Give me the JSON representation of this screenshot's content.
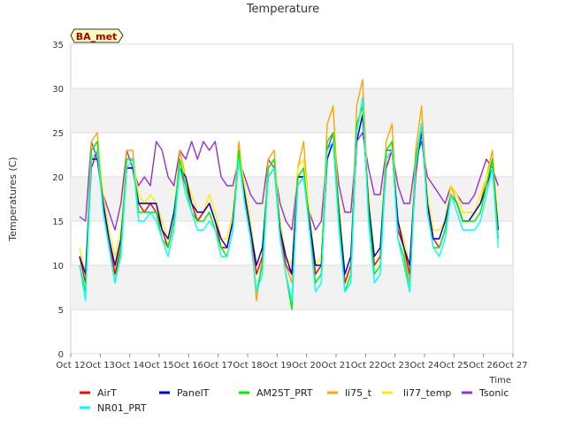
{
  "chart_data": {
    "type": "line",
    "title": "Temperature",
    "xlabel": "Time",
    "ylabel": "Temperatures (C)",
    "annotation": "BA_met",
    "ylim": [
      0,
      35
    ],
    "xlim": [
      0,
      15
    ],
    "yticks": [
      0,
      5,
      10,
      15,
      20,
      25,
      30,
      35
    ],
    "xticks": [
      {
        "pos": 0,
        "label": "Oct 12"
      },
      {
        "pos": 1,
        "label": "Oct 13"
      },
      {
        "pos": 2,
        "label": "Oct 14"
      },
      {
        "pos": 3,
        "label": "Oct 15"
      },
      {
        "pos": 4,
        "label": "Oct 16"
      },
      {
        "pos": 5,
        "label": "Oct 17"
      },
      {
        "pos": 6,
        "label": "Oct 18"
      },
      {
        "pos": 7,
        "label": "Oct 19"
      },
      {
        "pos": 8,
        "label": "Oct 20"
      },
      {
        "pos": 9,
        "label": "Oct 21"
      },
      {
        "pos": 10,
        "label": "Oct 22"
      },
      {
        "pos": 11,
        "label": "Oct 23"
      },
      {
        "pos": 12,
        "label": "Oct 24"
      },
      {
        "pos": 13,
        "label": "Oct 25"
      },
      {
        "pos": 14,
        "label": "Oct 26"
      },
      {
        "pos": 15,
        "label": "Oct 27"
      }
    ],
    "grid": true,
    "legend_position": "bottom",
    "x": [
      0.3,
      0.5,
      0.7,
      0.9,
      1.1,
      1.3,
      1.5,
      1.7,
      1.9,
      2.1,
      2.3,
      2.5,
      2.7,
      2.9,
      3.1,
      3.3,
      3.5,
      3.7,
      3.9,
      4.1,
      4.3,
      4.5,
      4.7,
      4.9,
      5.1,
      5.3,
      5.5,
      5.7,
      5.9,
      6.1,
      6.3,
      6.5,
      6.7,
      6.9,
      7.1,
      7.3,
      7.5,
      7.7,
      7.9,
      8.1,
      8.3,
      8.5,
      8.7,
      8.9,
      9.1,
      9.3,
      9.5,
      9.7,
      9.9,
      10.1,
      10.3,
      10.5,
      10.7,
      10.9,
      11.1,
      11.3,
      11.5,
      11.7,
      11.9,
      12.1,
      12.3,
      12.5,
      12.7,
      12.9,
      13.1,
      13.3,
      13.5,
      13.7,
      13.9,
      14.1,
      14.3,
      14.5
    ],
    "series": [
      {
        "name": "AirT",
        "color": "#ff0000",
        "values": [
          11,
          8,
          21,
          23,
          17,
          13,
          9,
          12,
          21,
          21,
          17,
          16,
          17,
          16,
          14,
          12,
          15,
          21,
          19,
          17,
          15,
          16,
          17,
          15,
          12,
          12,
          15,
          22,
          18,
          14,
          9,
          11,
          20,
          21,
          14,
          10,
          9,
          19,
          20,
          15,
          9,
          10,
          22,
          24,
          16,
          8,
          10,
          24,
          27,
          17,
          10,
          11,
          21,
          23,
          14,
          12,
          9,
          20,
          26,
          17,
          13,
          12,
          14,
          18,
          17,
          15,
          15,
          16,
          17,
          19,
          22,
          14
        ]
      },
      {
        "name": "PanelT",
        "color": "#0000cc",
        "values": [
          11,
          9,
          22,
          22,
          17,
          13,
          10,
          13,
          21,
          21,
          17,
          17,
          17,
          17,
          14,
          13,
          16,
          21,
          20,
          17,
          16,
          16,
          17,
          15,
          13,
          12,
          15,
          22,
          18,
          14,
          10,
          12,
          20,
          21,
          14,
          11,
          9,
          20,
          20,
          15,
          10,
          10,
          22,
          24,
          16,
          9,
          11,
          24,
          27,
          17,
          11,
          12,
          22,
          23,
          15,
          12,
          10,
          21,
          25,
          17,
          13,
          13,
          15,
          18,
          17,
          15,
          15,
          16,
          17,
          19,
          21,
          14
        ]
      },
      {
        "name": "AM25T_PRT",
        "color": "#00ee00",
        "values": [
          10,
          7,
          23,
          24,
          16,
          12,
          8,
          12,
          22,
          22,
          16,
          16,
          16,
          16,
          13,
          12,
          15,
          22,
          19,
          16,
          15,
          15,
          16,
          14,
          12,
          11,
          14,
          23,
          17,
          13,
          7,
          10,
          21,
          22,
          13,
          9,
          5,
          20,
          21,
          14,
          8,
          9,
          24,
          25,
          15,
          7,
          9,
          26,
          28,
          16,
          9,
          10,
          23,
          24,
          13,
          11,
          7,
          22,
          26,
          16,
          12,
          12,
          14,
          18,
          17,
          15,
          15,
          15,
          16,
          19,
          22,
          13
        ]
      },
      {
        "name": "li75_t",
        "color": "#ffa500",
        "values": [
          11,
          8,
          24,
          25,
          17,
          12,
          9,
          13,
          23,
          23,
          17,
          17,
          17,
          17,
          14,
          12,
          15,
          23,
          20,
          17,
          15,
          16,
          17,
          15,
          12,
          12,
          15,
          24,
          18,
          14,
          6,
          11,
          22,
          23,
          14,
          10,
          8,
          21,
          24,
          15,
          9,
          10,
          26,
          28,
          16,
          8,
          10,
          28,
          31,
          17,
          10,
          11,
          24,
          26,
          14,
          12,
          8,
          23,
          28,
          17,
          13,
          13,
          15,
          19,
          17,
          15,
          15,
          16,
          17,
          20,
          23,
          14
        ]
      },
      {
        "name": "li77_temp",
        "color": "#ffee00",
        "values": [
          12,
          9,
          23,
          24,
          18,
          14,
          11,
          14,
          22,
          22,
          18,
          17,
          18,
          17,
          15,
          13,
          16,
          22,
          20,
          18,
          16,
          16,
          18,
          16,
          13,
          13,
          16,
          23,
          19,
          15,
          10,
          12,
          21,
          22,
          15,
          11,
          10,
          21,
          22,
          16,
          10,
          11,
          24,
          25,
          17,
          9,
          11,
          25,
          28,
          18,
          11,
          12,
          23,
          24,
          15,
          13,
          10,
          22,
          26,
          18,
          14,
          14,
          15,
          19,
          18,
          16,
          16,
          16,
          18,
          20,
          22,
          15
        ]
      },
      {
        "name": "Tsonic",
        "color": "#9932cc",
        "values": [
          15.5,
          15,
          24,
          22,
          18,
          16,
          14,
          17,
          23,
          21,
          19,
          20,
          19,
          24,
          23,
          20,
          19,
          23,
          22,
          24,
          22,
          24,
          23,
          24,
          20,
          19,
          19,
          22,
          20,
          18,
          17,
          17,
          22,
          21,
          17,
          15,
          14,
          20,
          20,
          16,
          14,
          15,
          23,
          25,
          19,
          16,
          16,
          24,
          25,
          21,
          18,
          18,
          23,
          23,
          19,
          17,
          17,
          22,
          24,
          20,
          19,
          18,
          17,
          19,
          18,
          17,
          17,
          18,
          20,
          22,
          21,
          19
        ]
      },
      {
        "name": "NR01_PRT",
        "color": "#00ffff",
        "values": [
          10,
          6,
          22,
          23,
          16,
          12,
          8,
          11,
          21,
          22,
          15,
          15,
          16,
          15,
          13,
          11,
          14,
          21,
          18,
          16,
          14,
          14,
          15,
          14,
          11,
          11,
          14,
          22,
          17,
          13,
          7,
          9,
          20,
          21,
          13,
          9,
          6,
          19,
          20,
          14,
          7,
          8,
          23,
          24,
          14,
          7,
          8,
          25,
          29,
          15,
          8,
          9,
          22,
          23,
          13,
          10,
          7,
          21,
          26,
          16,
          12,
          11,
          13,
          18,
          16,
          14,
          14,
          14,
          15,
          18,
          21,
          12
        ]
      }
    ]
  }
}
